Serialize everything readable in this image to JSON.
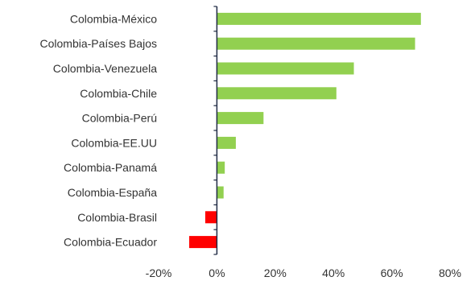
{
  "chart_data": {
    "type": "bar",
    "orientation": "horizontal",
    "categories": [
      "Colombia-México",
      "Colombia-Países Bajos",
      "Colombia-Venezuela",
      "Colombia-Chile",
      "Colombia-Perú",
      "Colombia-EE.UU",
      "Colombia-Panamá",
      "Colombia-España",
      "Colombia-Brasil",
      "Colombia-Ecuador"
    ],
    "values": [
      70,
      68,
      47,
      41,
      16,
      6.5,
      2.7,
      2.3,
      -4,
      -9.5
    ],
    "xlim": [
      -20,
      80
    ],
    "xticks": [
      -20,
      0,
      20,
      40,
      60,
      80
    ],
    "tick_labels": [
      "-20%",
      "0%",
      "20%",
      "40%",
      "60%",
      "80%"
    ],
    "title": "",
    "xlabel": "",
    "ylabel": "",
    "grid": false,
    "legend": "none",
    "colors": {
      "positive": "#92D050",
      "negative": "#FF0000",
      "axis": "#1F2A44"
    }
  }
}
